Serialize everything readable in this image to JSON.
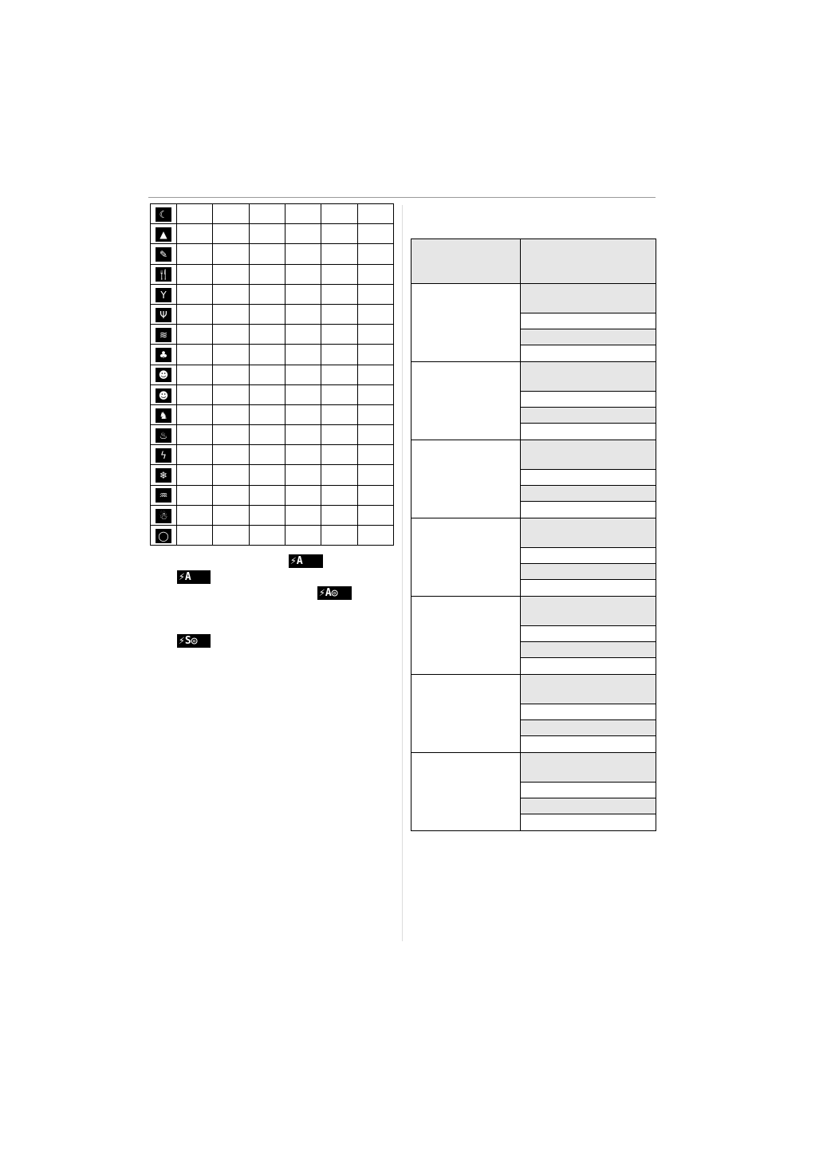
{
  "scene_table": {
    "rows": [
      {
        "icon": "night-portrait-icon",
        "glyph": "☾"
      },
      {
        "icon": "night-scenery-icon",
        "glyph": "▲"
      },
      {
        "icon": "night-framing-icon",
        "glyph": "✎"
      },
      {
        "icon": "food-icon",
        "glyph": "🍴"
      },
      {
        "icon": "party-icon",
        "glyph": "Y"
      },
      {
        "icon": "candle-light-icon",
        "glyph": "Ψ"
      },
      {
        "icon": "baby-1-icon",
        "glyph": "≋"
      },
      {
        "icon": "baby-2-icon",
        "glyph": "♣"
      },
      {
        "icon": "pet-1-icon",
        "glyph": "☻"
      },
      {
        "icon": "pet-2-icon",
        "glyph": "☻"
      },
      {
        "icon": "pet-icon",
        "glyph": "♞"
      },
      {
        "icon": "sunset-icon",
        "glyph": "♨"
      },
      {
        "icon": "high-sensitivity-icon",
        "glyph": "ϟ"
      },
      {
        "icon": "snow-icon",
        "glyph": "❄"
      },
      {
        "icon": "beach-icon",
        "glyph": "♒"
      },
      {
        "icon": "underwater-icon",
        "glyph": "☃"
      },
      {
        "icon": "aerial-photo-icon",
        "glyph": "◯"
      }
    ],
    "value_columns": 6
  },
  "flash_badges": [
    {
      "icon": "flash-auto-icon",
      "label": "⚡A"
    },
    {
      "icon": "flash-auto-icon",
      "label": "⚡A"
    },
    {
      "icon": "flash-auto-red-eye-icon",
      "label": "⚡A◎"
    },
    {
      "icon": "flash-slow-sync-red-eye-icon",
      "label": "⚡S◎"
    }
  ],
  "right_table": {
    "groups": 7
  }
}
